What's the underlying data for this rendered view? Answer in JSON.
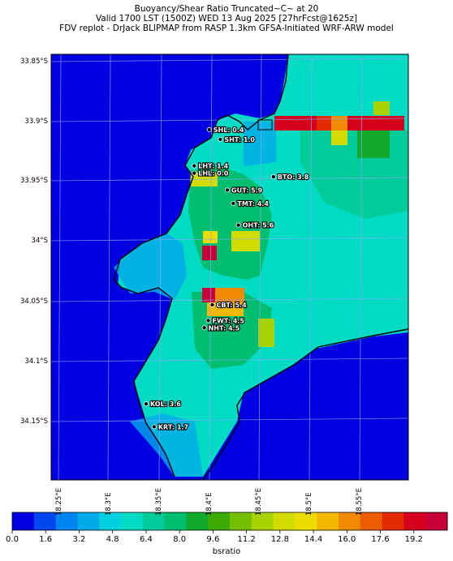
{
  "header": {
    "line1": "Buoyancy/Shear Ratio Truncated~C~    at 20",
    "line2": "Valid 1700 LST (1500Z) WED 13 Aug 2025 [27hrFcst@1625z]",
    "line3": "FDV replot - DrJack BLIPMAP from RASP 1.3km GFSA-Initiated WRF-ARW model"
  },
  "axes": {
    "lat_ticks": [
      "33.85°S",
      "33.9°S",
      "33.95°S",
      "34°S",
      "34.05°S",
      "34.1°S",
      "34.15°S"
    ],
    "lon_ticks": [
      "18.25°E",
      "18.3°E",
      "18.35°E",
      "18.4°E",
      "18.45°E",
      "18.5°E",
      "18.55°E"
    ]
  },
  "colors": {
    "sea": "#0000e0",
    "land_base": "#00dcd4",
    "coast": "#000000",
    "grid": "#8fa8ff"
  },
  "stations": [
    {
      "label": "SHL: 0.4",
      "lat": 33.907,
      "lon": 18.398
    },
    {
      "label": "SHT: 1.0",
      "lat": 33.915,
      "lon": 18.409
    },
    {
      "label": "LHT: 1.4",
      "lat": 33.937,
      "lon": 18.383
    },
    {
      "label": "LHL: 0.0",
      "lat": 33.943,
      "lon": 18.383
    },
    {
      "label": "BTO: 3.8",
      "lat": 33.946,
      "lon": 18.462
    },
    {
      "label": "GUT: 5.9",
      "lat": 33.957,
      "lon": 18.416
    },
    {
      "label": "TMT: 4.4",
      "lat": 33.968,
      "lon": 18.422
    },
    {
      "label": "OHT: 5.6",
      "lat": 33.986,
      "lon": 18.427
    },
    {
      "label": "CBT: 5.4",
      "lat": 34.052,
      "lon": 18.401
    },
    {
      "label": "FWT: 4.5",
      "lat": 34.065,
      "lon": 18.397
    },
    {
      "label": "NHT: 4.5",
      "lat": 34.071,
      "lon": 18.393
    },
    {
      "label": "KOL: 3.6",
      "lat": 34.134,
      "lon": 18.335
    },
    {
      "label": "KRT: 1.7",
      "lat": 34.153,
      "lon": 18.343
    }
  ],
  "colorbar": {
    "label": "bsratio",
    "ticks": [
      "0.0",
      "1.6",
      "3.2",
      "4.8",
      "6.4",
      "8.0",
      "9.6",
      "11.2",
      "12.8",
      "14.4",
      "16.0",
      "17.6",
      "19.2"
    ],
    "colors": [
      "#0000e0",
      "#0046ef",
      "#0084ef",
      "#00aaea",
      "#00d0e0",
      "#00dcc4",
      "#00cc9a",
      "#00be70",
      "#12aa2c",
      "#3caa00",
      "#74c000",
      "#a8d200",
      "#d2dc00",
      "#ecdc00",
      "#f4b800",
      "#f08a00",
      "#ec5c00",
      "#e42a00",
      "#d4001c",
      "#c8003a"
    ]
  }
}
